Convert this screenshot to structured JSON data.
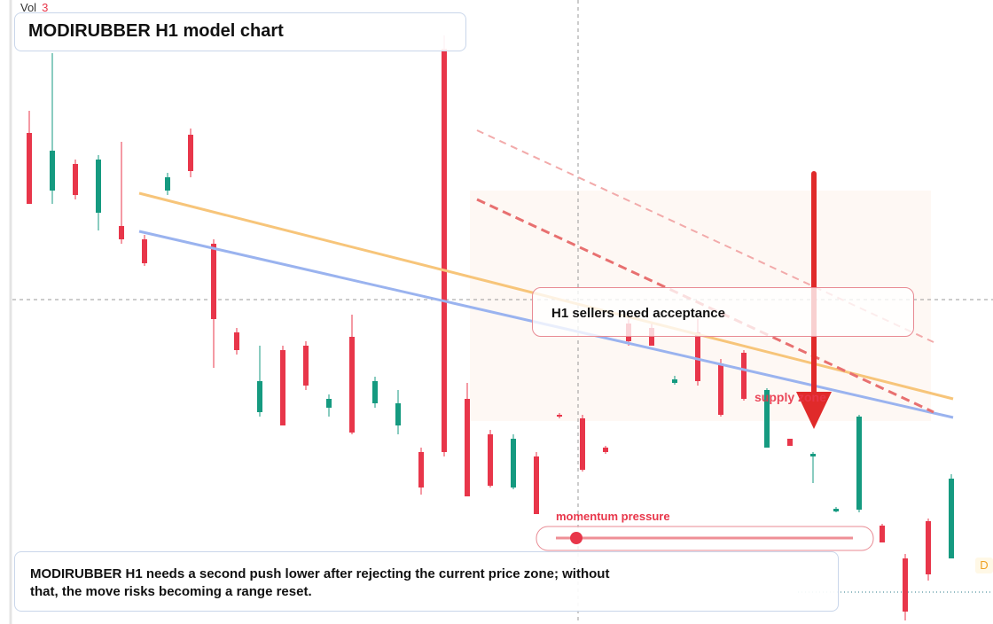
{
  "chart_data": {
    "type": "candlestick",
    "title": "MODIRUBBER H1 model chart",
    "volume_label": "Vol",
    "volume_value": "3",
    "callout": "H1 sellers need acceptance",
    "zone_label": "supply zone",
    "indicator_label": "momentum pressure",
    "note": "MODIRUBBER H1 needs a second push lower after rejecting the current price zone; without that, the move risks becoming a range reset.",
    "timeframe_tag": "D",
    "up_color": "#159a80",
    "down_color": "#e8364a",
    "ylim": [
      0,
      704
    ],
    "candles": [
      [
        554,
        579,
        474,
        474
      ],
      [
        489,
        644,
        474,
        534
      ],
      [
        519,
        524,
        479,
        484
      ],
      [
        464,
        529,
        444,
        524
      ],
      [
        449,
        544,
        429,
        434
      ],
      [
        434,
        439,
        404,
        407
      ],
      [
        489,
        509,
        484,
        504
      ],
      [
        552,
        559,
        504,
        511
      ],
      [
        429,
        434,
        289,
        344
      ],
      [
        329,
        334,
        304,
        309
      ],
      [
        239,
        314,
        234,
        274
      ],
      [
        309,
        314,
        224,
        224
      ],
      [
        314,
        319,
        264,
        269
      ],
      [
        244,
        259,
        234,
        254
      ],
      [
        324,
        349,
        214,
        216
      ],
      [
        249,
        279,
        244,
        274
      ],
      [
        224,
        264,
        214,
        249
      ],
      [
        194,
        199,
        146,
        154
      ],
      [
        649,
        664,
        189,
        194
      ],
      [
        254,
        272,
        144,
        144
      ],
      [
        214,
        219,
        154,
        156
      ],
      [
        154,
        214,
        152,
        209
      ],
      [
        189,
        194,
        124,
        124
      ],
      [
        236,
        238,
        232,
        234
      ],
      [
        232,
        236,
        172,
        174
      ],
      [
        199,
        201,
        192,
        194
      ],
      [
        339,
        344,
        314,
        319
      ],
      [
        334,
        339,
        314,
        314
      ],
      [
        272,
        280,
        270,
        276
      ],
      [
        329,
        344,
        269,
        274
      ],
      [
        294,
        299,
        234,
        236
      ],
      [
        306,
        309,
        252,
        254
      ],
      [
        199,
        266,
        199,
        264
      ],
      [
        209,
        209,
        201,
        201
      ],
      [
        189,
        194,
        159,
        192
      ],
      [
        127,
        132,
        126,
        130
      ],
      [
        129,
        236,
        126,
        234
      ],
      [
        111,
        113,
        92,
        92
      ],
      [
        74,
        79,
        4,
        14
      ],
      [
        116,
        119,
        49,
        56
      ],
      [
        74,
        169,
        74,
        164
      ]
    ]
  }
}
